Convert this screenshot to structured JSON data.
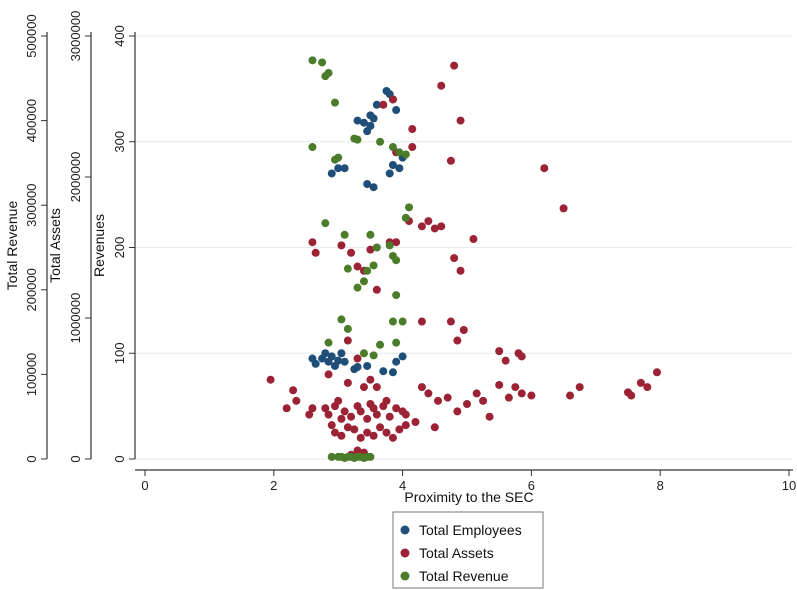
{
  "chart_data": {
    "type": "scatter",
    "title": "",
    "xlabel": "Proximity to the SEC",
    "xlim": [
      0,
      10
    ],
    "x_ticks": [
      "0",
      "2",
      "4",
      "6",
      "8",
      "10"
    ],
    "grid": "horizontal",
    "legend_position": "bottom",
    "y_axes": [
      {
        "label": "Revenues",
        "range": [
          0,
          400
        ],
        "ticks": [
          "0",
          "100",
          "200",
          "300",
          "400"
        ]
      },
      {
        "label": "Total Assets",
        "range": [
          0,
          3000000
        ],
        "ticks": [
          "0",
          "1000000",
          "2000000",
          "3000000"
        ]
      },
      {
        "label": "Total Revenue",
        "range": [
          0,
          500000
        ],
        "ticks": [
          "0",
          "100000",
          "200000",
          "300000",
          "400000",
          "500000"
        ]
      }
    ],
    "series": [
      {
        "name": "Total Employees",
        "color": "#1f4e79",
        "points": [
          [
            3.3,
            320
          ],
          [
            3.4,
            318
          ],
          [
            3.5,
            325
          ],
          [
            3.55,
            322
          ],
          [
            3.6,
            335
          ],
          [
            3.75,
            348
          ],
          [
            3.8,
            345
          ],
          [
            3.85,
            340
          ],
          [
            3.9,
            330
          ],
          [
            3.45,
            310
          ],
          [
            3.5,
            315
          ],
          [
            3.0,
            275
          ],
          [
            3.1,
            275
          ],
          [
            2.9,
            270
          ],
          [
            3.85,
            278
          ],
          [
            3.8,
            270
          ],
          [
            3.95,
            275
          ],
          [
            4.0,
            285
          ],
          [
            3.45,
            260
          ],
          [
            3.55,
            257
          ],
          [
            2.6,
            95
          ],
          [
            2.65,
            90
          ],
          [
            2.75,
            95
          ],
          [
            2.8,
            100
          ],
          [
            2.85,
            92
          ],
          [
            2.9,
            97
          ],
          [
            3.0,
            93
          ],
          [
            3.05,
            100
          ],
          [
            2.95,
            88
          ],
          [
            3.1,
            92
          ],
          [
            3.25,
            85
          ],
          [
            3.3,
            87
          ],
          [
            3.45,
            88
          ],
          [
            3.7,
            83
          ],
          [
            3.9,
            92
          ],
          [
            4.0,
            97
          ],
          [
            3.85,
            82
          ]
        ]
      },
      {
        "name": "Total Assets",
        "color": "#9b2335",
        "points": [
          [
            4.8,
            372
          ],
          [
            4.6,
            353
          ],
          [
            4.9,
            320
          ],
          [
            4.15,
            312
          ],
          [
            3.7,
            335
          ],
          [
            3.85,
            340
          ],
          [
            3.9,
            290
          ],
          [
            4.15,
            295
          ],
          [
            4.75,
            282
          ],
          [
            6.2,
            275
          ],
          [
            6.5,
            237
          ],
          [
            4.1,
            225
          ],
          [
            4.3,
            220
          ],
          [
            4.4,
            225
          ],
          [
            4.5,
            218
          ],
          [
            4.6,
            220
          ],
          [
            5.1,
            208
          ],
          [
            2.6,
            205
          ],
          [
            3.05,
            202
          ],
          [
            3.2,
            195
          ],
          [
            3.5,
            198
          ],
          [
            3.8,
            205
          ],
          [
            3.9,
            205
          ],
          [
            4.8,
            190
          ],
          [
            4.9,
            178
          ],
          [
            2.65,
            195
          ],
          [
            3.3,
            182
          ],
          [
            3.4,
            178
          ],
          [
            3.6,
            160
          ],
          [
            4.3,
            130
          ],
          [
            4.75,
            130
          ],
          [
            4.95,
            122
          ],
          [
            3.15,
            112
          ],
          [
            4.85,
            112
          ],
          [
            5.5,
            102
          ],
          [
            5.8,
            100
          ],
          [
            5.6,
            93
          ],
          [
            5.85,
            97
          ],
          [
            1.95,
            75
          ],
          [
            2.2,
            48
          ],
          [
            2.35,
            55
          ],
          [
            2.3,
            65
          ],
          [
            2.55,
            42
          ],
          [
            2.6,
            48
          ],
          [
            2.8,
            48
          ],
          [
            2.85,
            42
          ],
          [
            2.95,
            50
          ],
          [
            3.0,
            55
          ],
          [
            3.05,
            38
          ],
          [
            3.1,
            45
          ],
          [
            3.2,
            40
          ],
          [
            3.3,
            50
          ],
          [
            3.35,
            45
          ],
          [
            3.45,
            38
          ],
          [
            3.5,
            52
          ],
          [
            3.55,
            48
          ],
          [
            3.6,
            42
          ],
          [
            3.7,
            50
          ],
          [
            3.75,
            55
          ],
          [
            3.8,
            40
          ],
          [
            3.9,
            48
          ],
          [
            4.0,
            45
          ],
          [
            4.05,
            42
          ],
          [
            4.3,
            68
          ],
          [
            4.4,
            62
          ],
          [
            4.55,
            55
          ],
          [
            4.7,
            58
          ],
          [
            4.85,
            45
          ],
          [
            5.0,
            52
          ],
          [
            5.15,
            62
          ],
          [
            5.25,
            55
          ],
          [
            5.35,
            40
          ],
          [
            5.5,
            70
          ],
          [
            5.65,
            58
          ],
          [
            5.75,
            68
          ],
          [
            5.85,
            62
          ],
          [
            6.0,
            60
          ],
          [
            6.6,
            60
          ],
          [
            6.75,
            68
          ],
          [
            7.5,
            63
          ],
          [
            7.55,
            60
          ],
          [
            7.7,
            72
          ],
          [
            7.95,
            82
          ],
          [
            7.8,
            68
          ],
          [
            2.85,
            80
          ],
          [
            3.3,
            95
          ],
          [
            3.5,
            75
          ],
          [
            3.6,
            68
          ],
          [
            3.4,
            68
          ],
          [
            3.15,
            72
          ],
          [
            2.9,
            32
          ],
          [
            2.95,
            25
          ],
          [
            3.05,
            22
          ],
          [
            3.15,
            30
          ],
          [
            3.25,
            28
          ],
          [
            3.35,
            20
          ],
          [
            3.45,
            25
          ],
          [
            3.55,
            22
          ],
          [
            3.65,
            30
          ],
          [
            3.75,
            25
          ],
          [
            3.85,
            20
          ],
          [
            3.95,
            28
          ],
          [
            4.05,
            32
          ],
          [
            4.2,
            35
          ],
          [
            4.5,
            30
          ],
          [
            3.3,
            8
          ],
          [
            3.4,
            6
          ],
          [
            3.2,
            4
          ]
        ]
      },
      {
        "name": "Total Revenue",
        "color": "#4a7c2a",
        "points": [
          [
            2.6,
            377
          ],
          [
            2.75,
            375
          ],
          [
            2.85,
            365
          ],
          [
            2.8,
            362
          ],
          [
            2.95,
            337
          ],
          [
            2.95,
            283
          ],
          [
            3.0,
            285
          ],
          [
            3.3,
            302
          ],
          [
            3.25,
            303
          ],
          [
            3.65,
            300
          ],
          [
            3.85,
            295
          ],
          [
            3.95,
            290
          ],
          [
            4.05,
            288
          ],
          [
            2.6,
            295
          ],
          [
            4.1,
            238
          ],
          [
            4.05,
            228
          ],
          [
            2.8,
            223
          ],
          [
            3.5,
            212
          ],
          [
            3.1,
            212
          ],
          [
            3.6,
            200
          ],
          [
            3.8,
            202
          ],
          [
            3.85,
            192
          ],
          [
            3.9,
            188
          ],
          [
            3.55,
            183
          ],
          [
            3.15,
            180
          ],
          [
            3.4,
            168
          ],
          [
            3.3,
            162
          ],
          [
            3.45,
            178
          ],
          [
            3.9,
            155
          ],
          [
            3.05,
            132
          ],
          [
            3.15,
            123
          ],
          [
            3.85,
            130
          ],
          [
            4.0,
            130
          ],
          [
            3.65,
            108
          ],
          [
            3.9,
            110
          ],
          [
            3.4,
            100
          ],
          [
            2.85,
            110
          ],
          [
            3.55,
            98
          ],
          [
            2.9,
            2
          ],
          [
            3.0,
            2
          ],
          [
            3.05,
            2
          ],
          [
            3.1,
            1
          ],
          [
            3.15,
            2
          ],
          [
            3.2,
            2
          ],
          [
            3.25,
            1
          ],
          [
            3.3,
            2
          ],
          [
            3.35,
            2
          ],
          [
            3.4,
            1
          ],
          [
            3.45,
            2
          ],
          [
            3.5,
            2
          ]
        ]
      }
    ]
  }
}
